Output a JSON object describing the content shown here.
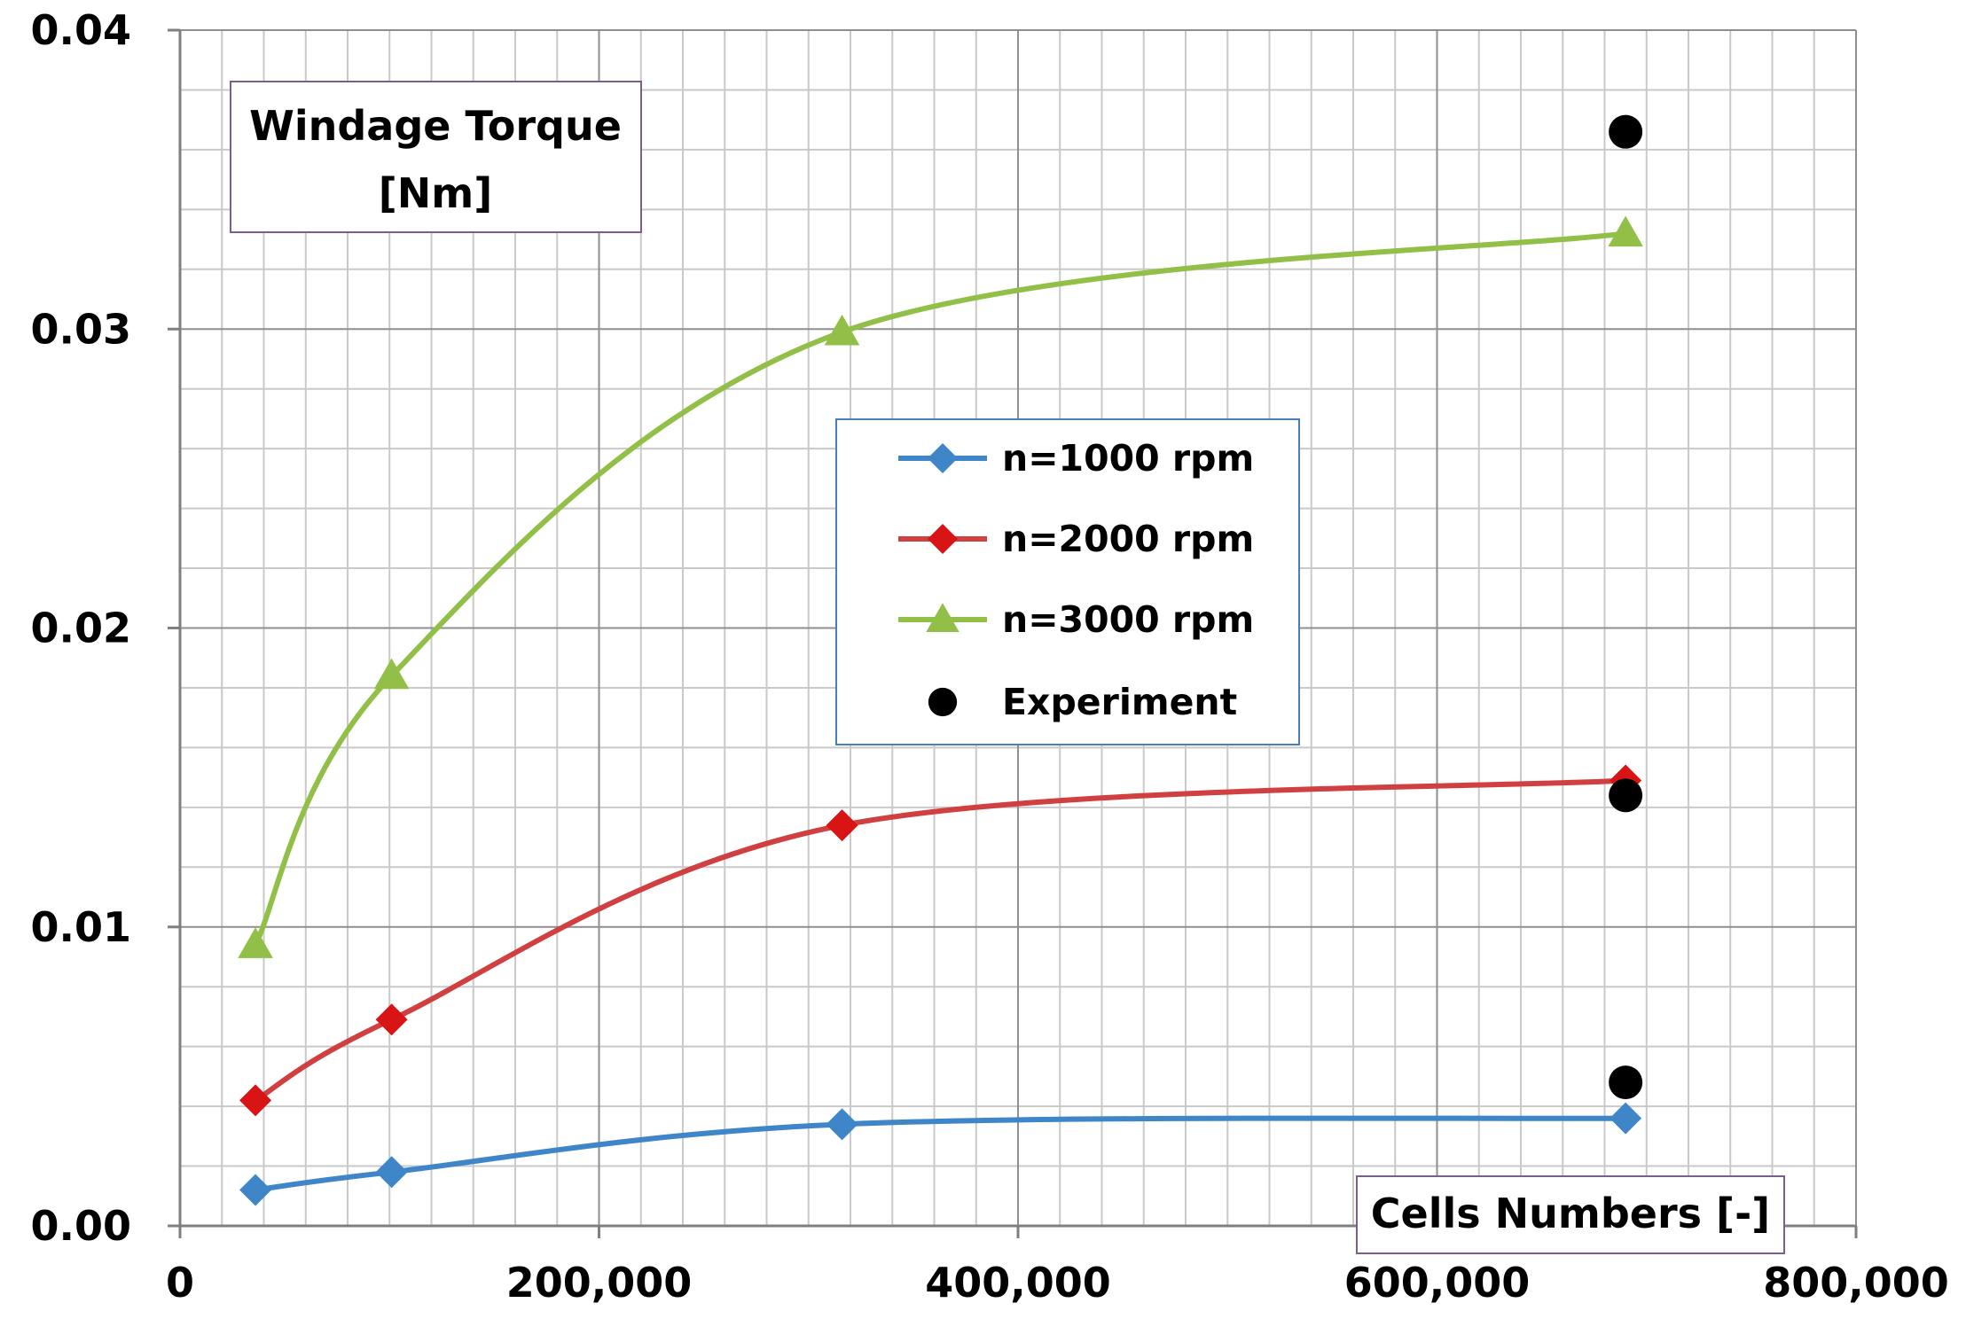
{
  "chart_data": {
    "type": "line",
    "title": "",
    "ylabel": "Windage Torque [Nm]",
    "ylabel_lines": [
      "Windage Torque",
      "[Nm]"
    ],
    "xlabel": "Cells Numbers [-]",
    "xlim": [
      0,
      800000
    ],
    "ylim": [
      0,
      0.04
    ],
    "x_ticks": [
      0,
      200000,
      400000,
      600000,
      800000
    ],
    "x_tick_labels": [
      "0",
      "200,000",
      "400,000",
      "600,000",
      "800,000"
    ],
    "y_ticks": [
      0,
      0.01,
      0.02,
      0.03,
      0.04
    ],
    "y_tick_labels": [
      "0.00",
      "0.01",
      "0.02",
      "0.03",
      "0.04"
    ],
    "grid": true,
    "legend_position": "center",
    "series": [
      {
        "name": "n=1000 rpm",
        "color": "#3f86c8",
        "marker": "diamond",
        "line": true,
        "x": [
          36000,
          101000,
          316000,
          690000
        ],
        "values": [
          0.0012,
          0.0018,
          0.0034,
          0.0036
        ]
      },
      {
        "name": "n=2000 rpm",
        "color": "#d91414",
        "line_color": "#d04040",
        "marker": "diamond",
        "line": true,
        "x": [
          36000,
          101000,
          316000,
          690000
        ],
        "values": [
          0.0042,
          0.0069,
          0.0134,
          0.0149
        ]
      },
      {
        "name": "n=3000 rpm",
        "color": "#92bf48",
        "marker": "triangle",
        "line": true,
        "x": [
          36000,
          101000,
          316000,
          690000
        ],
        "values": [
          0.0094,
          0.0184,
          0.0299,
          0.0332
        ]
      },
      {
        "name": "Experiment",
        "color": "#000000",
        "marker": "circle",
        "line": false,
        "x": [
          690000,
          690000,
          690000
        ],
        "values": [
          0.0366,
          0.0144,
          0.0048
        ]
      }
    ]
  }
}
